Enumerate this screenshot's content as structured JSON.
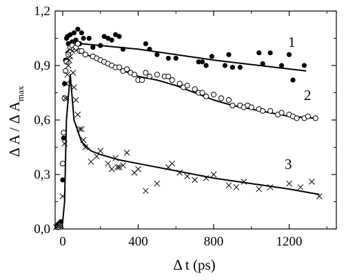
{
  "chart_data": {
    "type": "scatter",
    "xlabel": "Δ t (ps)",
    "ylabel_main": "Δ A / Δ A",
    "ylabel_sub": "max",
    "xlim": [
      -40,
      1450
    ],
    "ylim": [
      0.0,
      1.2
    ],
    "x_ticks": [
      0,
      400,
      800,
      1200
    ],
    "x_tick_labels": [
      "0",
      "400",
      "800",
      "1200"
    ],
    "y_ticks": [
      0.0,
      0.3,
      0.6,
      0.9,
      1.2
    ],
    "y_tick_labels": [
      "0,0",
      "0,3",
      "0,6",
      "0,9",
      "1,2"
    ],
    "grid": false,
    "curve_labels": [
      "1",
      "2",
      "3"
    ],
    "series": [
      {
        "marker": "filled-circle",
        "points": [
          [
            -30,
            0.02
          ],
          [
            -20,
            0.03
          ],
          [
            -10,
            0.04
          ],
          [
            0,
            0.27
          ],
          [
            5,
            0.5
          ],
          [
            10,
            0.8
          ],
          [
            15,
            0.93
          ],
          [
            20,
            1.05
          ],
          [
            25,
            1.06
          ],
          [
            30,
            1.02
          ],
          [
            40,
            1.07
          ],
          [
            50,
            1.03
          ],
          [
            55,
            1.0
          ],
          [
            60,
            1.08
          ],
          [
            70,
            1.04
          ],
          [
            80,
            1.1
          ],
          [
            90,
            1.02
          ],
          [
            100,
            1.08
          ],
          [
            110,
            1.05
          ],
          [
            140,
            1.05
          ],
          [
            160,
            1.0
          ],
          [
            200,
            1.01
          ],
          [
            220,
            1.06
          ],
          [
            240,
            1.05
          ],
          [
            260,
            1.04
          ],
          [
            280,
            1.07
          ],
          [
            300,
            1.06
          ],
          [
            320,
            0.99
          ],
          [
            440,
            1.02
          ],
          [
            460,
            0.99
          ],
          [
            500,
            0.96
          ],
          [
            560,
            0.94
          ],
          [
            600,
            0.94
          ],
          [
            720,
            0.92
          ],
          [
            740,
            0.92
          ],
          [
            760,
            0.9
          ],
          [
            790,
            0.95
          ],
          [
            860,
            0.9
          ],
          [
            880,
            0.96
          ],
          [
            900,
            0.89
          ],
          [
            940,
            0.89
          ],
          [
            1040,
            0.97
          ],
          [
            1060,
            0.91
          ],
          [
            1100,
            0.97
          ],
          [
            1160,
            0.9
          ],
          [
            1200,
            0.96
          ],
          [
            1220,
            0.82
          ],
          [
            1280,
            0.9
          ]
        ],
        "fit": [
          [
            20,
            1.03
          ],
          [
            100,
            1.02
          ],
          [
            400,
            0.99
          ],
          [
            800,
            0.93
          ],
          [
            1290,
            0.87
          ]
        ]
      },
      {
        "marker": "open-circle",
        "points": [
          [
            -25,
            0.01
          ],
          [
            -15,
            0.02
          ],
          [
            0,
            0.36
          ],
          [
            5,
            0.53
          ],
          [
            10,
            0.72
          ],
          [
            15,
            0.87
          ],
          [
            20,
            0.92
          ],
          [
            30,
            0.96
          ],
          [
            40,
            1.0
          ],
          [
            50,
            1.01
          ],
          [
            60,
            0.99
          ],
          [
            70,
            1.0
          ],
          [
            80,
            1.02
          ],
          [
            90,
            0.98
          ],
          [
            100,
            0.98
          ],
          [
            120,
            0.96
          ],
          [
            160,
            0.95
          ],
          [
            180,
            0.94
          ],
          [
            200,
            0.93
          ],
          [
            220,
            0.92
          ],
          [
            240,
            0.91
          ],
          [
            260,
            0.9
          ],
          [
            280,
            0.89
          ],
          [
            300,
            0.89
          ],
          [
            320,
            0.87
          ],
          [
            340,
            0.88
          ],
          [
            360,
            0.86
          ],
          [
            380,
            0.85
          ],
          [
            400,
            0.82
          ],
          [
            420,
            0.82
          ],
          [
            440,
            0.86
          ],
          [
            460,
            0.84
          ],
          [
            500,
            0.85
          ],
          [
            540,
            0.84
          ],
          [
            560,
            0.84
          ],
          [
            580,
            0.82
          ],
          [
            620,
            0.8
          ],
          [
            640,
            0.78
          ],
          [
            660,
            0.79
          ],
          [
            700,
            0.77
          ],
          [
            720,
            0.75
          ],
          [
            740,
            0.75
          ],
          [
            760,
            0.73
          ],
          [
            800,
            0.74
          ],
          [
            840,
            0.72
          ],
          [
            880,
            0.71
          ],
          [
            900,
            0.68
          ],
          [
            940,
            0.68
          ],
          [
            960,
            0.67
          ],
          [
            980,
            0.68
          ],
          [
            1000,
            0.67
          ],
          [
            1040,
            0.66
          ],
          [
            1060,
            0.65
          ],
          [
            1100,
            0.65
          ],
          [
            1140,
            0.63
          ],
          [
            1160,
            0.64
          ],
          [
            1200,
            0.63
          ],
          [
            1220,
            0.62
          ],
          [
            1240,
            0.61
          ],
          [
            1280,
            0.61
          ],
          [
            1300,
            0.62
          ],
          [
            1340,
            0.61
          ]
        ],
        "fit": [
          [
            15,
            0.97
          ],
          [
            50,
            1.0
          ],
          [
            100,
            0.97
          ],
          [
            200,
            0.93
          ],
          [
            300,
            0.88
          ],
          [
            400,
            0.84
          ],
          [
            500,
            0.82
          ],
          [
            600,
            0.79
          ],
          [
            700,
            0.75
          ],
          [
            800,
            0.71
          ],
          [
            900,
            0.68
          ],
          [
            1000,
            0.66
          ],
          [
            1100,
            0.64
          ],
          [
            1200,
            0.62
          ],
          [
            1340,
            0.61
          ]
        ]
      },
      {
        "marker": "cross",
        "points": [
          [
            -35,
            0.01
          ],
          [
            -20,
            0.02
          ],
          [
            -10,
            0.02
          ],
          [
            0,
            0.18
          ],
          [
            10,
            0.47
          ],
          [
            15,
            0.72
          ],
          [
            20,
            0.8
          ],
          [
            25,
            0.85
          ],
          [
            30,
            0.9
          ],
          [
            35,
            0.93
          ],
          [
            40,
            0.95
          ],
          [
            50,
            0.98
          ],
          [
            55,
            0.86
          ],
          [
            60,
            0.78
          ],
          [
            70,
            0.71
          ],
          [
            80,
            0.63
          ],
          [
            90,
            0.55
          ],
          [
            100,
            0.55
          ],
          [
            110,
            0.49
          ],
          [
            120,
            0.45
          ],
          [
            150,
            0.37
          ],
          [
            180,
            0.4
          ],
          [
            200,
            0.43
          ],
          [
            240,
            0.36
          ],
          [
            260,
            0.33
          ],
          [
            280,
            0.39
          ],
          [
            290,
            0.34
          ],
          [
            300,
            0.34
          ],
          [
            320,
            0.35
          ],
          [
            340,
            0.42
          ],
          [
            380,
            0.31
          ],
          [
            400,
            0.33
          ],
          [
            440,
            0.21
          ],
          [
            500,
            0.25
          ],
          [
            560,
            0.34
          ],
          [
            580,
            0.36
          ],
          [
            620,
            0.31
          ],
          [
            660,
            0.29
          ],
          [
            700,
            0.27
          ],
          [
            760,
            0.28
          ],
          [
            800,
            0.3
          ],
          [
            880,
            0.24
          ],
          [
            920,
            0.23
          ],
          [
            960,
            0.26
          ],
          [
            1040,
            0.22
          ],
          [
            1100,
            0.23
          ],
          [
            1200,
            0.25
          ],
          [
            1260,
            0.23
          ],
          [
            1320,
            0.26
          ],
          [
            1360,
            0.18
          ]
        ],
        "fit": [
          [
            0,
            0.04
          ],
          [
            10,
            0.15
          ],
          [
            20,
            0.6
          ],
          [
            40,
            0.85
          ],
          [
            60,
            0.6
          ],
          [
            100,
            0.48
          ],
          [
            150,
            0.43
          ],
          [
            200,
            0.41
          ],
          [
            300,
            0.38
          ],
          [
            400,
            0.36
          ],
          [
            600,
            0.32
          ],
          [
            800,
            0.28
          ],
          [
            1000,
            0.25
          ],
          [
            1200,
            0.22
          ],
          [
            1360,
            0.19
          ]
        ]
      }
    ]
  }
}
